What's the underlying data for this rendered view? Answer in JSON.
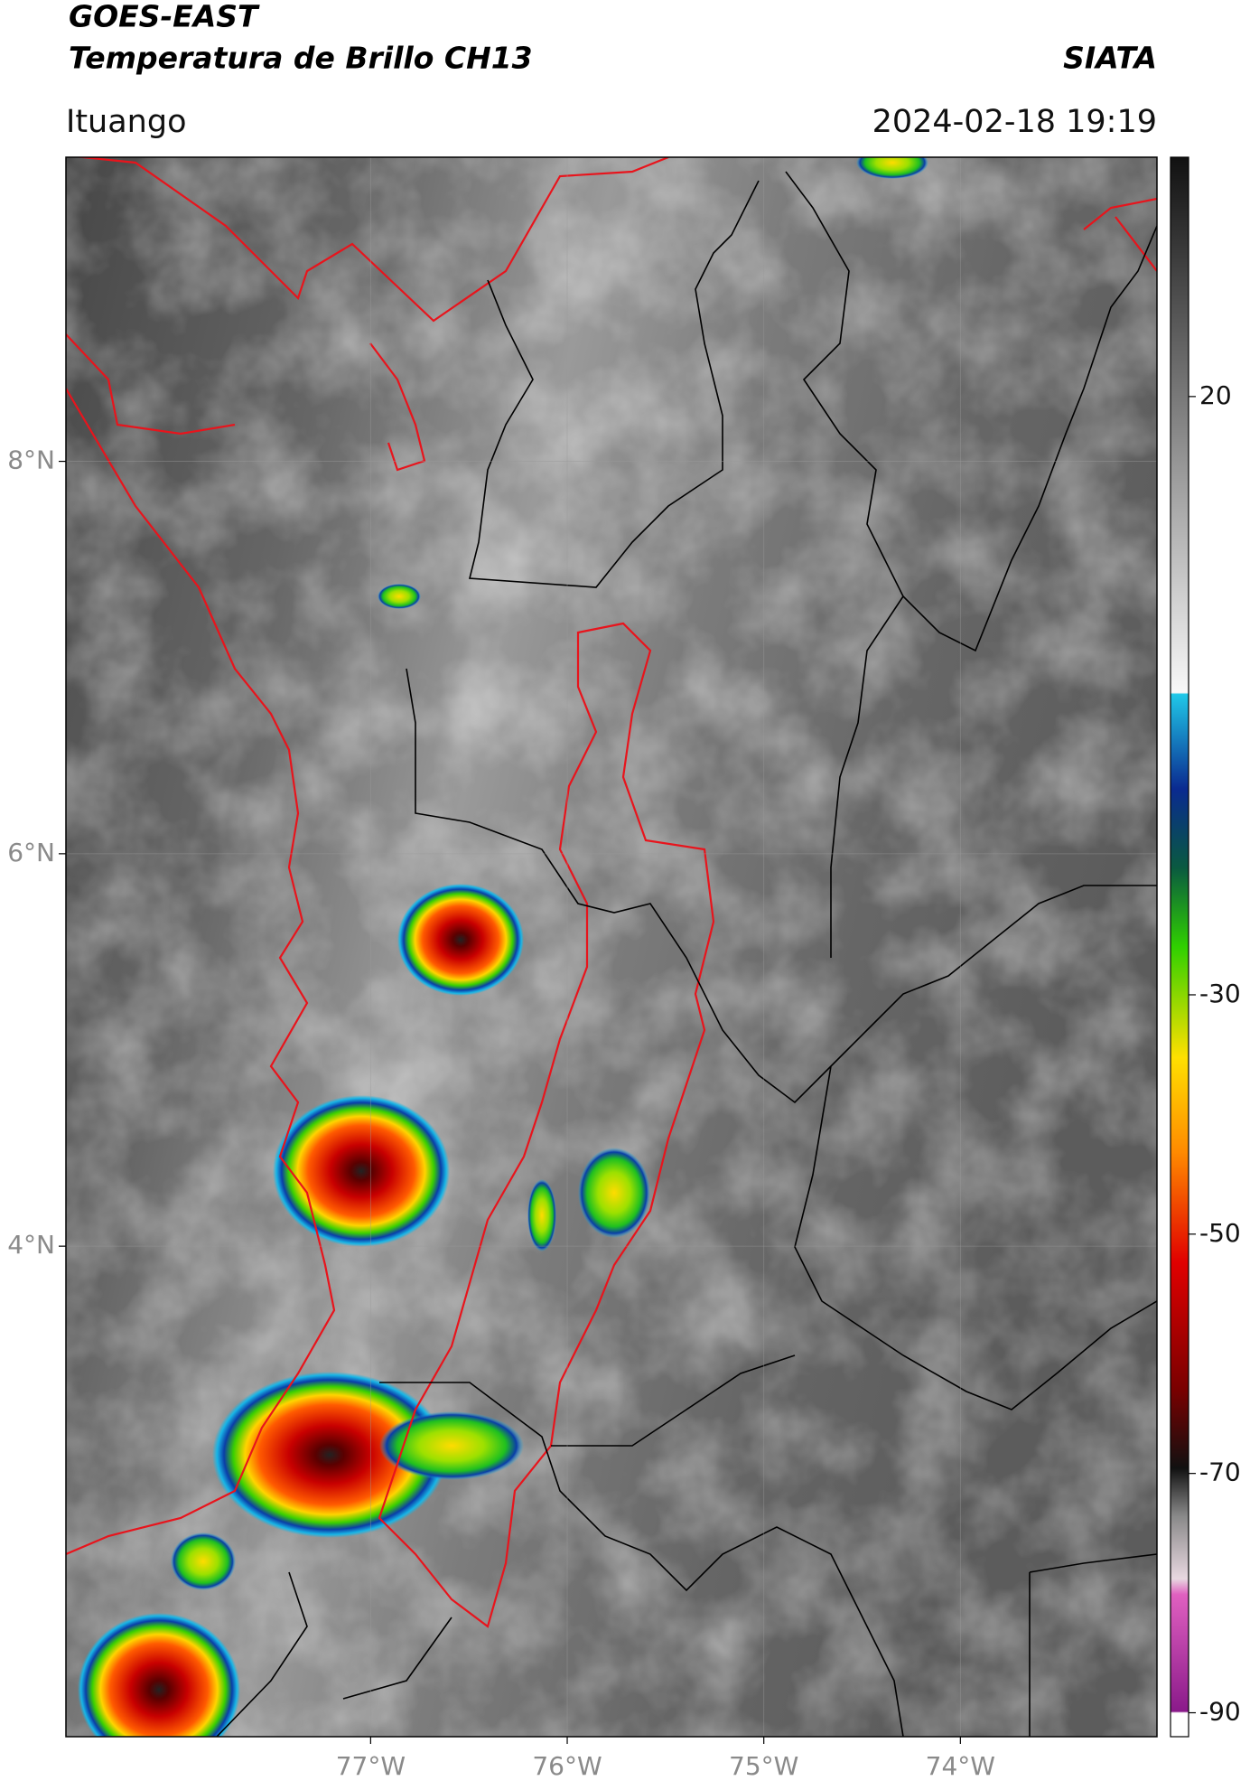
{
  "header": {
    "title": "GOES-EAST",
    "subtitle": "Temperatura de Brillo CH13",
    "source": "SIATA",
    "location": "Ituango",
    "datetime": "2024-02-18 19:19"
  },
  "map": {
    "xlim": [
      -78.55,
      -73.0
    ],
    "ylim": [
      1.5,
      9.55
    ],
    "xticks": [
      {
        "value": -77,
        "label": "77°W"
      },
      {
        "value": -76,
        "label": "76°W"
      },
      {
        "value": -75,
        "label": "75°W"
      },
      {
        "value": -74,
        "label": "74°W"
      }
    ],
    "yticks": [
      {
        "value": 8,
        "label": "8°N"
      },
      {
        "value": 6,
        "label": "6°N"
      },
      {
        "value": 4,
        "label": "4°N"
      }
    ],
    "grid": true
  },
  "colorbar": {
    "lim": [
      -92,
      40
    ],
    "ticks": [
      20,
      -30,
      -50,
      -70,
      -90
    ]
  }
}
